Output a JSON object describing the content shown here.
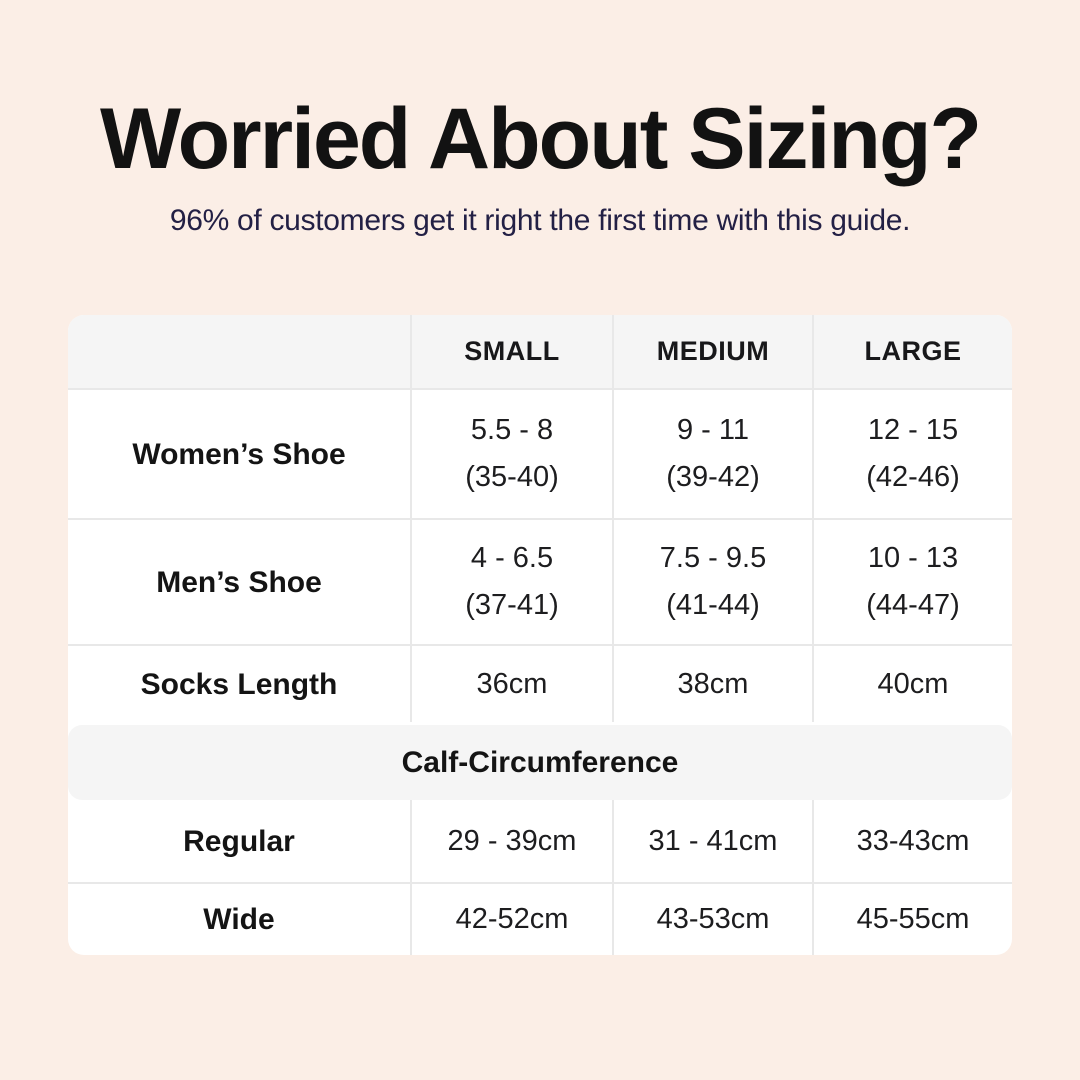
{
  "page": {
    "title": "Worried About Sizing?",
    "subtitle": "96% of customers get it right the first time with this guide."
  },
  "colors": {
    "page_background": "#FBEEE6",
    "title_text": "#121212",
    "subtitle_text": "#232045",
    "table_background": "#FFFFFF",
    "table_header_background": "#F5F5F5",
    "divider": "#E8E8E8"
  },
  "size_chart": {
    "headers": [
      "SMALL",
      "MEDIUM",
      "LARGE"
    ],
    "rows": [
      {
        "label": "Women’s Shoe",
        "small": [
          "5.5 - 8",
          "(35-40)"
        ],
        "medium": [
          "9 - 11",
          "(39-42)"
        ],
        "large": [
          "12 - 15",
          "(42-46)"
        ]
      },
      {
        "label": "Men’s Shoe",
        "small": [
          "4 - 6.5",
          "(37-41)"
        ],
        "medium": [
          "7.5 - 9.5",
          "(41-44)"
        ],
        "large": [
          "10 - 13",
          "(44-47)"
        ]
      },
      {
        "label": "Socks Length",
        "small": [
          "36cm"
        ],
        "medium": [
          "38cm"
        ],
        "large": [
          "40cm"
        ]
      }
    ],
    "section_title": "Calf-Circumference",
    "calf_rows": [
      {
        "label": "Regular",
        "small": [
          "29 - 39cm"
        ],
        "medium": [
          "31 - 41cm"
        ],
        "large": [
          "33-43cm"
        ]
      },
      {
        "label": "Wide",
        "small": [
          "42-52cm"
        ],
        "medium": [
          "43-53cm"
        ],
        "large": [
          "45-55cm"
        ]
      }
    ]
  }
}
